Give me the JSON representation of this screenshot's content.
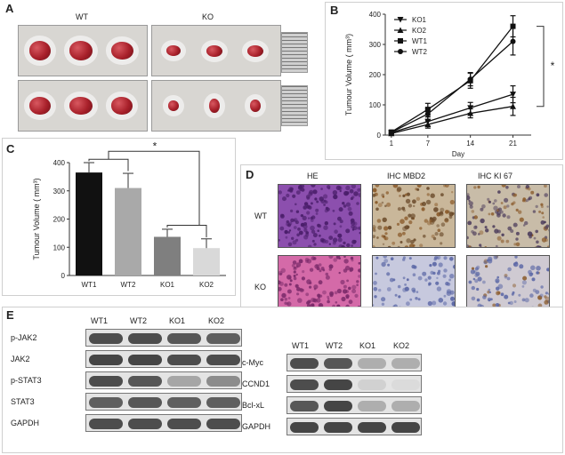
{
  "panels": {
    "a": "A",
    "b": "B",
    "c": "C",
    "d": "D",
    "e": "E"
  },
  "panel_a": {
    "wt_label": "WT",
    "ko_label": "KO"
  },
  "panel_b": {
    "ylabel": "Tumour Volume ( mm³)",
    "xlabel": "Day",
    "significance": "*",
    "legend": [
      "KO1",
      "KO2",
      "WT1",
      "WT2"
    ]
  },
  "panel_c": {
    "ylabel": "Tumour Volume ( mm³)",
    "significance": "*"
  },
  "panel_d": {
    "columns": [
      "HE",
      "IHC  MBD2",
      "IHC  KI 67"
    ],
    "rows": [
      "WT",
      "KO"
    ]
  },
  "panel_e": {
    "left_columns": [
      "WT1",
      "WT2",
      "KO1",
      "KO2"
    ],
    "left_rows": [
      "p-JAK2",
      "JAK2",
      "p-STAT3",
      "STAT3",
      "GAPDH"
    ],
    "right_columns": [
      "WT1",
      "WT2",
      "KO1",
      "KO2"
    ],
    "right_rows": [
      "c-Myc",
      "CCND1",
      "Bcl-xL",
      "GAPDH"
    ]
  },
  "colors": {
    "tumor": "#a8202a",
    "he_stain": "#b04a8c",
    "ihc_brown": "#8a5a2a",
    "ihc_blue": "#8d97c6",
    "bar_wt1": "#111111",
    "bar_wt2": "#a9a9a9",
    "bar_ko1": "#7f7f7f",
    "bar_ko2": "#d9d9d9"
  },
  "chart_data": [
    {
      "type": "line",
      "x": [
        1,
        7,
        14,
        21
      ],
      "xlabel": "Day",
      "ylabel": "Tumour Volume ( mm³)",
      "ylim": [
        0,
        400
      ],
      "xticks": [
        1,
        7,
        14,
        21
      ],
      "yticks": [
        0,
        100,
        200,
        300,
        400
      ],
      "series": [
        {
          "name": "KO1",
          "values": [
            8,
            45,
            90,
            135
          ],
          "errors": [
            3,
            15,
            18,
            28
          ]
        },
        {
          "name": "KO2",
          "values": [
            5,
            35,
            72,
            95
          ],
          "errors": [
            2,
            12,
            15,
            30
          ]
        },
        {
          "name": "WT1",
          "values": [
            10,
            85,
            180,
            360
          ],
          "errors": [
            4,
            20,
            25,
            35
          ]
        },
        {
          "name": "WT2",
          "values": [
            9,
            70,
            185,
            310
          ],
          "errors": [
            4,
            18,
            22,
            45
          ]
        }
      ],
      "annotations": [
        "*"
      ]
    },
    {
      "type": "bar",
      "categories": [
        "WT1",
        "WT2",
        "KO1",
        "KO2"
      ],
      "values": [
        365,
        310,
        137,
        97
      ],
      "errors": [
        35,
        52,
        27,
        33
      ],
      "ylabel": "Tumour Volume ( mm³)",
      "ylim": [
        0,
        400
      ],
      "yticks": [
        0,
        100,
        200,
        300,
        400
      ],
      "annotations": [
        "*"
      ]
    }
  ],
  "blots": {
    "left": [
      [
        0.85,
        0.85,
        0.8,
        0.75
      ],
      [
        0.9,
        0.9,
        0.85,
        0.85
      ],
      [
        0.85,
        0.8,
        0.35,
        0.5
      ],
      [
        0.75,
        0.8,
        0.75,
        0.75
      ],
      [
        0.85,
        0.85,
        0.85,
        0.85
      ]
    ],
    "right": [
      [
        0.85,
        0.8,
        0.3,
        0.3
      ],
      [
        0.85,
        0.9,
        0.1,
        0.05
      ],
      [
        0.8,
        0.9,
        0.3,
        0.3
      ],
      [
        0.9,
        0.9,
        0.9,
        0.9
      ]
    ]
  }
}
